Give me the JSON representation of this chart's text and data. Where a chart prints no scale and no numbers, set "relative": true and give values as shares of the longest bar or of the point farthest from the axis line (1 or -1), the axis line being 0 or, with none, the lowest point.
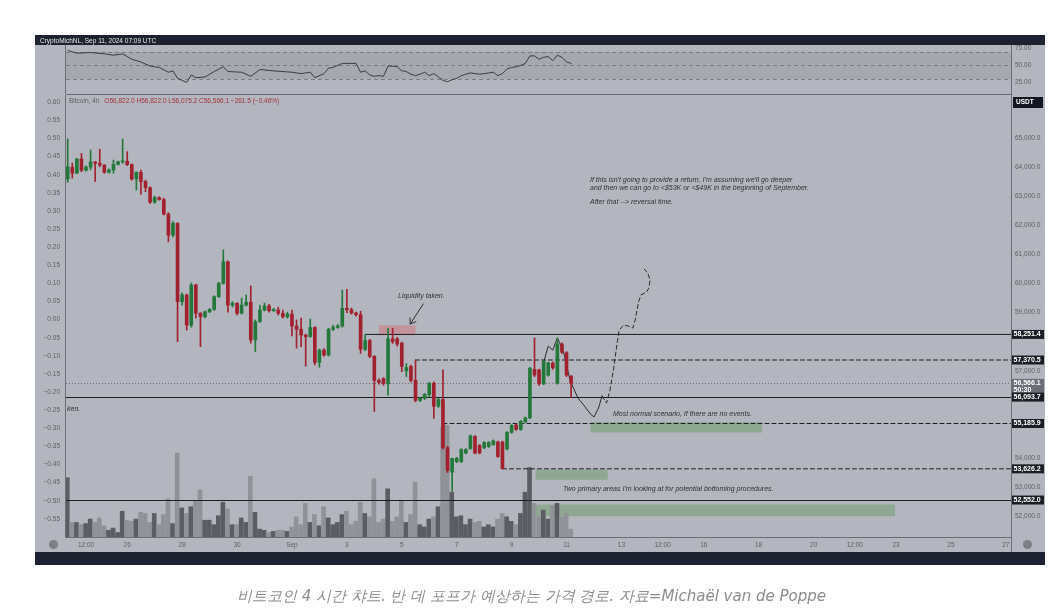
{
  "chart_data": [
    {
      "type": "line",
      "title": "CryptoMichNL, Sep 11, 2024 07:09 UTC",
      "x": [
        "2024-08-23T20:00",
        "2024-08-24T00:00",
        "2024-08-24T04:00",
        "2024-08-24T16:00",
        "2024-08-25T04:00",
        "2024-08-25T12:00",
        "2024-08-25T20:00",
        "2024-08-26T04:00",
        "2024-08-26T12:00",
        "2024-08-26T20:00",
        "2024-08-27T04:00",
        "2024-08-27T12:00",
        "2024-08-27T16:00",
        "2024-08-27T20:00",
        "2024-08-28T00:00",
        "2024-08-28T04:00",
        "2024-08-28T08:00",
        "2024-08-28T12:00",
        "2024-08-28T20:00",
        "2024-08-29T04:00",
        "2024-08-29T12:00",
        "2024-08-29T16:00",
        "2024-08-30T04:00",
        "2024-08-30T12:00",
        "2024-08-30T20:00",
        "2024-08-31T08:00",
        "2024-09-01T00:00",
        "2024-09-01T08:00",
        "2024-09-01T16:00",
        "2024-09-01T20:00",
        "2024-09-02T04:00",
        "2024-09-02T08:00",
        "2024-09-02T12:00",
        "2024-09-02T20:00",
        "2024-09-03T00:00",
        "2024-09-03T08:00",
        "2024-09-03T12:00",
        "2024-09-03T16:00",
        "2024-09-03T20:00",
        "2024-09-04T00:00",
        "2024-09-04T04:00",
        "2024-09-04T08:00",
        "2024-09-04T12:00",
        "2024-09-04T16:00",
        "2024-09-04T20:00",
        "2024-09-05T00:00",
        "2024-09-05T04:00",
        "2024-09-05T08:00",
        "2024-09-05T12:00",
        "2024-09-05T16:00",
        "2024-09-05T20:00",
        "2024-09-06T00:00",
        "2024-09-06T04:00",
        "2024-09-06T08:00",
        "2024-09-06T12:00",
        "2024-09-06T16:00",
        "2024-09-06T20:00",
        "2024-09-07T00:00",
        "2024-09-07T04:00",
        "2024-09-07T08:00",
        "2024-09-07T12:00",
        "2024-09-07T16:00",
        "2024-09-07T20:00",
        "2024-09-08T00:00",
        "2024-09-08T04:00",
        "2024-09-08T08:00",
        "2024-09-08T12:00",
        "2024-09-08T16:00",
        "2024-09-08T20:00",
        "2024-09-09T00:00",
        "2024-09-09T04:00",
        "2024-09-09T08:00",
        "2024-09-09T12:00",
        "2024-09-09T16:00",
        "2024-09-09T20:00",
        "2024-09-10T00:00",
        "2024-09-10T04:00",
        "2024-09-10T08:00",
        "2024-09-10T12:00",
        "2024-09-10T16:00",
        "2024-09-10T20:00",
        "2024-09-11T00:00",
        "2024-09-11T04:00"
      ],
      "values": [
        72,
        70,
        68,
        69,
        67,
        65,
        67,
        59,
        55,
        49,
        47,
        40,
        42,
        31,
        28,
        25,
        36,
        32,
        33,
        41,
        48,
        41,
        40,
        34,
        44,
        42,
        40,
        38,
        40,
        32,
        38,
        46,
        47,
        53,
        53,
        53,
        40,
        42,
        36,
        34,
        35,
        34,
        49,
        49,
        48,
        42,
        41,
        37,
        35,
        37,
        40,
        35,
        38,
        33,
        28,
        26,
        29,
        31,
        35,
        37,
        39,
        38,
        37,
        38,
        39,
        40,
        35,
        38,
        45,
        47,
        48,
        50,
        53,
        64,
        64,
        59,
        62,
        63,
        57,
        65,
        62,
        55,
        53
      ],
      "color": "#3a3d44",
      "xlim": [
        "2024-08-23T18:30",
        "2024-09-27T04:30"
      ],
      "ylim": [
        8,
        80
      ],
      "yticks": [
        {
          "value": 25,
          "label": "25.00"
        },
        {
          "value": 50,
          "label": "50.00"
        },
        {
          "value": 75,
          "label": "75.00"
        }
      ],
      "tick_labels": "y",
      "bands": [
        {
          "axis": "y",
          "from": 30,
          "to": 70,
          "color": "#a5a8af"
        }
      ],
      "ref_lines": [
        {
          "axis": "y",
          "value": 70,
          "color": "#7b7e86",
          "line_style": "dashed"
        },
        {
          "axis": "y",
          "value": 50,
          "color": "#7b7e86",
          "line_style": "dashed"
        },
        {
          "axis": "y",
          "value": 30,
          "color": "#7b7e86",
          "line_style": "dashed"
        }
      ]
    },
    {
      "type": "candlestick",
      "title": "Bitcoin, 4h",
      "ylabel": "USDT",
      "x": [
        "2024-08-23T20:00",
        "2024-08-24T00:00",
        "2024-08-24T04:00",
        "2024-08-24T08:00",
        "2024-08-24T12:00",
        "2024-08-24T16:00",
        "2024-08-24T20:00",
        "2024-08-25T00:00",
        "2024-08-25T04:00",
        "2024-08-25T08:00",
        "2024-08-25T12:00",
        "2024-08-25T16:00",
        "2024-08-25T20:00",
        "2024-08-26T00:00",
        "2024-08-26T04:00",
        "2024-08-26T08:00",
        "2024-08-26T12:00",
        "2024-08-26T16:00",
        "2024-08-26T20:00",
        "2024-08-27T00:00",
        "2024-08-27T04:00",
        "2024-08-27T08:00",
        "2024-08-27T12:00",
        "2024-08-27T16:00",
        "2024-08-27T20:00",
        "2024-08-28T00:00",
        "2024-08-28T04:00",
        "2024-08-28T08:00",
        "2024-08-28T12:00",
        "2024-08-28T16:00",
        "2024-08-28T20:00",
        "2024-08-29T00:00",
        "2024-08-29T04:00",
        "2024-08-29T08:00",
        "2024-08-29T12:00",
        "2024-08-29T16:00",
        "2024-08-29T20:00",
        "2024-08-30T00:00",
        "2024-08-30T04:00",
        "2024-08-30T08:00",
        "2024-08-30T12:00",
        "2024-08-30T16:00",
        "2024-08-30T20:00",
        "2024-08-31T00:00",
        "2024-08-31T04:00",
        "2024-08-31T08:00",
        "2024-08-31T12:00",
        "2024-08-31T16:00",
        "2024-08-31T20:00",
        "2024-09-01T00:00",
        "2024-09-01T04:00",
        "2024-09-01T08:00",
        "2024-09-01T12:00",
        "2024-09-01T16:00",
        "2024-09-01T20:00",
        "2024-09-02T00:00",
        "2024-09-02T04:00",
        "2024-09-02T08:00",
        "2024-09-02T12:00",
        "2024-09-02T16:00",
        "2024-09-02T20:00",
        "2024-09-03T00:00",
        "2024-09-03T04:00",
        "2024-09-03T08:00",
        "2024-09-03T12:00",
        "2024-09-03T16:00",
        "2024-09-03T20:00",
        "2024-09-04T00:00",
        "2024-09-04T04:00",
        "2024-09-04T08:00",
        "2024-09-04T12:00",
        "2024-09-04T16:00",
        "2024-09-04T20:00",
        "2024-09-05T00:00",
        "2024-09-05T04:00",
        "2024-09-05T08:00",
        "2024-09-05T12:00",
        "2024-09-05T16:00",
        "2024-09-05T20:00",
        "2024-09-06T00:00",
        "2024-09-06T04:00",
        "2024-09-06T08:00",
        "2024-09-06T12:00",
        "2024-09-06T16:00",
        "2024-09-06T20:00",
        "2024-09-07T00:00",
        "2024-09-07T04:00",
        "2024-09-07T08:00",
        "2024-09-07T12:00",
        "2024-09-07T16:00",
        "2024-09-07T20:00",
        "2024-09-08T00:00",
        "2024-09-08T04:00",
        "2024-09-08T08:00",
        "2024-09-08T12:00",
        "2024-09-08T16:00",
        "2024-09-08T20:00",
        "2024-09-09T00:00",
        "2024-09-09T04:00",
        "2024-09-09T08:00",
        "2024-09-09T12:00",
        "2024-09-09T16:00",
        "2024-09-09T20:00",
        "2024-09-10T00:00",
        "2024-09-10T04:00",
        "2024-09-10T08:00",
        "2024-09-10T12:00",
        "2024-09-10T16:00",
        "2024-09-10T20:00",
        "2024-09-11T00:00",
        "2024-09-11T04:00"
      ],
      "series": [
        {
          "type": "line",
          "x": [
            "2024-09-03T16:00",
            "2024-09-27T04:30"
          ],
          "values": [
            58251.4,
            58251.4
          ],
          "color": "#1b1e25",
          "line_style": "solid",
          "value_labels": [
            null,
            "58,251.4"
          ]
        },
        {
          "type": "line",
          "x": [
            "2024-09-05T12:00",
            "2024-09-27T04:30"
          ],
          "values": [
            57370.5,
            57370.5
          ],
          "color": "#1b1e25",
          "line_style": "dashed",
          "value_labels": [
            null,
            "57,370.5"
          ]
        },
        {
          "type": "line",
          "x": [
            "2024-09-06T12:00",
            "2024-09-27T04:30"
          ],
          "values": [
            55185.9,
            55185.9
          ],
          "color": "#1b1e25",
          "line_style": "dashed",
          "value_labels": [
            null,
            "55,185.9"
          ]
        },
        {
          "type": "line",
          "x": [
            "2024-09-08T16:00",
            "2024-09-27T04:30"
          ],
          "values": [
            53626.2,
            53626.2
          ],
          "color": "#1b1e25",
          "line_style": "dashed",
          "value_labels": [
            null,
            "53,626.2"
          ]
        },
        {
          "type": "line",
          "x": [
            "2024-09-10T04:00",
            "2024-09-10T08:00",
            "2024-09-10T12:00",
            "2024-09-10T16:00",
            "2024-09-10T21:00",
            "2024-09-11T03:00",
            "2024-09-11T10:00",
            "2024-09-11T15:00",
            "2024-09-11T21:00",
            "2024-09-12T00:00",
            "2024-09-12T04:00",
            "2024-09-12T07:00"
          ],
          "values": [
            57300,
            57850,
            57710,
            58130,
            57710,
            56680,
            56060,
            55820,
            55510,
            55410,
            55720,
            56130
          ],
          "color": "#2a2d33",
          "line_style": "solid"
        },
        {
          "type": "line",
          "x": [
            "2024-09-12T07:00",
            "2024-09-12T11:00",
            "2024-09-12T14:00",
            "2024-09-12T17:00",
            "2024-09-12T20:00",
            "2024-09-12T22:00",
            "2024-09-13T02:00",
            "2024-09-13T06:00",
            "2024-09-13T10:00",
            "2024-09-13T12:00",
            "2024-09-13T15:00",
            "2024-09-13T17:00",
            "2024-09-13T22:00",
            "2024-09-14T00:00",
            "2024-09-14T01:00",
            "2024-09-13T23:00",
            "2024-09-13T20:00"
          ],
          "values": [
            56130,
            55890,
            56340,
            57020,
            57890,
            58400,
            58570,
            58540,
            58470,
            58750,
            59370,
            59610,
            59710,
            59850,
            60120,
            60360,
            60500
          ],
          "color": "#2a2d33",
          "line_style": "dashed"
        },
        {
          "ohlc": [
            [
              63600,
              64980,
              63490,
              64020
            ],
            [
              64000,
              64150,
              63630,
              63800
            ],
            [
              63800,
              64310,
              63790,
              64290
            ],
            [
              64290,
              64480,
              63850,
              63900
            ],
            [
              63900,
              64050,
              63870,
              64010
            ],
            [
              64010,
              64600,
              63910,
              64190
            ],
            [
              64190,
              64200,
              63510,
              64140
            ],
            [
              64140,
              64620,
              64020,
              64080
            ],
            [
              64080,
              64090,
              63800,
              63830
            ],
            [
              63830,
              63950,
              63800,
              63910
            ],
            [
              63910,
              64250,
              63800,
              64100
            ],
            [
              64100,
              64220,
              64080,
              64190
            ],
            [
              64190,
              64980,
              64140,
              64210
            ],
            [
              64210,
              64540,
              64060,
              64100
            ],
            [
              64100,
              64120,
              63560,
              63600
            ],
            [
              63600,
              63850,
              63220,
              63830
            ],
            [
              63830,
              63910,
              63070,
              63510
            ],
            [
              63510,
              63560,
              63160,
              63300
            ],
            [
              63300,
              63330,
              62760,
              62800
            ],
            [
              62800,
              63010,
              62760,
              62960
            ],
            [
              62960,
              62990,
              62870,
              62890
            ],
            [
              62890,
              62940,
              62360,
              62390
            ],
            [
              62390,
              62440,
              61440,
              61670
            ],
            [
              61670,
              62130,
              61610,
              62070
            ],
            [
              62070,
              62100,
              58000,
              59380
            ],
            [
              59380,
              59680,
              59260,
              59610
            ],
            [
              59610,
              59640,
              58400,
              58570
            ],
            [
              58570,
              60020,
              58500,
              59950
            ],
            [
              59950,
              59980,
              58810,
              58980
            ],
            [
              58980,
              59000,
              57830,
              58860
            ],
            [
              58860,
              59060,
              58820,
              59030
            ],
            [
              59030,
              59140,
              59000,
              59110
            ],
            [
              59110,
              59580,
              59080,
              59550
            ],
            [
              59550,
              60050,
              59520,
              60010
            ],
            [
              60010,
              61160,
              59980,
              60750
            ],
            [
              60750,
              60780,
              59020,
              59260
            ],
            [
              59260,
              59380,
              59200,
              59320
            ],
            [
              59320,
              59350,
              58920,
              58980
            ],
            [
              58980,
              59500,
              58950,
              59260
            ],
            [
              59260,
              59610,
              59230,
              59360
            ],
            [
              59360,
              59920,
              57950,
              58060
            ],
            [
              58060,
              58750,
              57660,
              58690
            ],
            [
              58690,
              59260,
              58660,
              59090
            ],
            [
              59090,
              59330,
              59060,
              59230
            ],
            [
              59230,
              59290,
              59020,
              59070
            ],
            [
              59070,
              59150,
              59040,
              59090
            ],
            [
              59090,
              59190,
              58920,
              58980
            ],
            [
              58980,
              59090,
              58810,
              58860
            ],
            [
              58860,
              59020,
              58810,
              58950
            ],
            [
              58950,
              59090,
              58200,
              58540
            ],
            [
              58540,
              58750,
              57780,
              58430
            ],
            [
              58430,
              58810,
              57830,
              58230
            ],
            [
              58230,
              58260,
              57160,
              58170
            ],
            [
              58170,
              58780,
              58160,
              58490
            ],
            [
              58490,
              58520,
              57200,
              57290
            ],
            [
              57290,
              57750,
              57120,
              57710
            ],
            [
              57710,
              57760,
              57500,
              57540
            ],
            [
              57540,
              58460,
              57510,
              58430
            ],
            [
              58430,
              58560,
              58380,
              58490
            ],
            [
              58490,
              58600,
              58460,
              58540
            ],
            [
              58540,
              59780,
              58500,
              59150
            ],
            [
              59150,
              59800,
              59000,
              59100
            ],
            [
              59100,
              59160,
              58950,
              58990
            ],
            [
              58990,
              59020,
              58880,
              58930
            ],
            [
              58930,
              59050,
              57600,
              57740
            ],
            [
              57740,
              58250,
              57690,
              58040
            ],
            [
              58040,
              58080,
              57450,
              57500
            ],
            [
              57500,
              57520,
              55600,
              56670
            ],
            [
              56670,
              56720,
              56540,
              56600
            ],
            [
              56730,
              56760,
              56500,
              56560
            ],
            [
              56550,
              58460,
              56160,
              58100
            ],
            [
              58100,
              58460,
              57940,
              58000
            ],
            [
              58100,
              58150,
              57850,
              57920
            ],
            [
              57950,
              57990,
              56970,
              57150
            ],
            [
              57000,
              57250,
              56800,
              57110
            ],
            [
              57150,
              57200,
              56620,
              56670
            ],
            [
              56670,
              57370,
              55930,
              55980
            ],
            [
              55980,
              56080,
              55940,
              56050
            ],
            [
              56050,
              56220,
              56010,
              56190
            ],
            [
              56170,
              56600,
              56100,
              56570
            ],
            [
              56570,
              56620,
              55360,
              55780
            ],
            [
              55780,
              56050,
              55740,
              56010
            ],
            [
              56010,
              57030,
              54300,
              54350
            ],
            [
              54350,
              54400,
              53500,
              53570
            ],
            [
              53510,
              53990,
              52860,
              53990
            ],
            [
              53870,
              54020,
              53840,
              53990
            ],
            [
              53870,
              54320,
              53840,
              54290
            ],
            [
              54170,
              54320,
              54140,
              54290
            ],
            [
              54320,
              54790,
              54300,
              54760
            ],
            [
              54740,
              54770,
              54140,
              54170
            ],
            [
              54430,
              54460,
              54140,
              54170
            ],
            [
              54350,
              54560,
              54320,
              54530
            ],
            [
              54390,
              54560,
              54360,
              54530
            ],
            [
              54460,
              54620,
              54430,
              54590
            ],
            [
              54550,
              54580,
              54020,
              54050
            ],
            [
              54550,
              54580,
              53626,
              53630
            ],
            [
              54310,
              54910,
              54280,
              54880
            ],
            [
              54880,
              55150,
              54850,
              55120
            ],
            [
              55140,
              55170,
              54950,
              54980
            ],
            [
              54980,
              55290,
              54950,
              55260
            ],
            [
              55240,
              55410,
              55210,
              55380
            ],
            [
              55380,
              57120,
              55350,
              57090
            ],
            [
              57050,
              58130,
              56800,
              56850
            ],
            [
              57030,
              57060,
              56500,
              56550
            ],
            [
              56550,
              57350,
              56520,
              57320
            ],
            [
              56850,
              57300,
              56820,
              57270
            ],
            [
              57270,
              57300,
              57050,
              57100
            ],
            [
              56580,
              58130,
              56540,
              57920
            ],
            [
              57920,
              57960,
              57600,
              57640
            ],
            [
              57620,
              57660,
              56800,
              56850
            ],
            [
              56822.0,
              56822.0,
              56075.2,
              56566.1
            ]
          ],
          "colors": [
            "#24783a",
            "#a1222e",
            "#24783a",
            "#a1222e",
            "#24783a",
            "#24783a",
            "#a1222e",
            "#a1222e",
            "#a1222e",
            "#24783a",
            "#24783a",
            "#24783a",
            "#24783a",
            "#a1222e",
            "#a1222e",
            "#24783a",
            "#a1222e",
            "#a1222e",
            "#a1222e",
            "#24783a",
            "#a1222e",
            "#a1222e",
            "#a1222e",
            "#24783a",
            "#a1222e",
            "#24783a",
            "#a1222e",
            "#24783a",
            "#a1222e",
            "#a1222e",
            "#24783a",
            "#24783a",
            "#24783a",
            "#24783a",
            "#24783a",
            "#a1222e",
            "#24783a",
            "#a1222e",
            "#24783a",
            "#24783a",
            "#a1222e",
            "#24783a",
            "#24783a",
            "#24783a",
            "#a1222e",
            "#24783a",
            "#a1222e",
            "#a1222e",
            "#24783a",
            "#a1222e",
            "#a1222e",
            "#a1222e",
            "#a1222e",
            "#24783a",
            "#a1222e",
            "#24783a",
            "#a1222e",
            "#24783a",
            "#24783a",
            "#24783a",
            "#24783a",
            "#a1222e",
            "#a1222e",
            "#a1222e",
            "#a1222e",
            "#24783a",
            "#a1222e",
            "#a1222e",
            "#a1222e",
            "#a1222e",
            "#24783a",
            "#a1222e",
            "#a1222e",
            "#a1222e",
            "#24783a",
            "#a1222e",
            "#a1222e",
            "#24783a",
            "#24783a",
            "#24783a",
            "#a1222e",
            "#24783a",
            "#a1222e",
            "#a1222e",
            "#24783a",
            "#24783a",
            "#24783a",
            "#24783a",
            "#24783a",
            "#a1222e",
            "#a1222e",
            "#24783a",
            "#24783a",
            "#24783a",
            "#a1222e",
            "#a1222e",
            "#24783a",
            "#24783a",
            "#a1222e",
            "#24783a",
            "#24783a",
            "#24783a",
            "#a1222e",
            "#a1222e",
            "#24783a",
            "#24783a",
            "#a1222e",
            "#24783a",
            "#a1222e",
            "#a1222e",
            "#a1222e"
          ]
        }
      ],
      "xlim": [
        "2024-08-23T18:30",
        "2024-09-27T04:30"
      ],
      "xticks": [
        {
          "value": "2024-08-24T12:00",
          "label": "12:00"
        },
        {
          "value": "2024-08-26",
          "label": "26"
        },
        {
          "value": "2024-08-28",
          "label": "28"
        },
        {
          "value": "2024-08-30",
          "label": "30"
        },
        {
          "value": "2024-09-01",
          "label": "Sep"
        },
        {
          "value": "2024-09-03",
          "label": "3"
        },
        {
          "value": "2024-09-05",
          "label": "5"
        },
        {
          "value": "2024-09-07",
          "label": "7"
        },
        {
          "value": "2024-09-09",
          "label": "9"
        },
        {
          "value": "2024-09-11",
          "label": "11"
        },
        {
          "value": "2024-09-13",
          "label": "13"
        },
        {
          "value": "2024-09-14T12:00",
          "label": "12:00"
        },
        {
          "value": "2024-09-16",
          "label": "16"
        },
        {
          "value": "2024-09-18",
          "label": "18"
        },
        {
          "value": "2024-09-20",
          "label": "20"
        },
        {
          "value": "2024-09-21T12:00",
          "label": "12:00"
        },
        {
          "value": "2024-09-23",
          "label": "23"
        },
        {
          "value": "2024-09-25",
          "label": "25"
        },
        {
          "value": "2024-09-27",
          "label": "27"
        }
      ],
      "ylim": [
        51280,
        66490
      ],
      "yticks": [
        {
          "value": 52000,
          "label": "52,000.0"
        },
        {
          "value": 53000,
          "label": "53,000.0"
        },
        {
          "value": 54000,
          "label": "54,000.0"
        },
        {
          "value": 57000,
          "label": "57,000.0"
        },
        {
          "value": 59000,
          "label": "59,000.0"
        },
        {
          "value": 60000,
          "label": "60,000.0"
        },
        {
          "value": 61000,
          "label": "61,000.0"
        },
        {
          "value": 62000,
          "label": "62,000.0"
        },
        {
          "value": 63000,
          "label": "63,000.0"
        },
        {
          "value": 64000,
          "label": "64,000.0"
        },
        {
          "value": 65000,
          "label": "65,000.0"
        }
      ],
      "y2lim": [
        -0.6,
        0.62
      ],
      "y2ticks": [
        {
          "value": 0.6,
          "label": "0.60"
        },
        {
          "value": 0.55,
          "label": "0.55"
        },
        {
          "value": 0.5,
          "label": "0.50"
        },
        {
          "value": 0.45,
          "label": "0.45"
        },
        {
          "value": 0.4,
          "label": "0.40"
        },
        {
          "value": 0.35,
          "label": "0.35"
        },
        {
          "value": 0.3,
          "label": "0.30"
        },
        {
          "value": 0.25,
          "label": "0.25"
        },
        {
          "value": 0.2,
          "label": "0.20"
        },
        {
          "value": 0.15,
          "label": "0.15"
        },
        {
          "value": 0.1,
          "label": "0.10"
        },
        {
          "value": 0.05,
          "label": "0.05"
        },
        {
          "value": 0,
          "label": "0.00"
        },
        {
          "value": -0.05,
          "label": "−0.05"
        },
        {
          "value": -0.1,
          "label": "−0.10"
        },
        {
          "value": -0.15,
          "label": "−0.15"
        },
        {
          "value": -0.2,
          "label": "−0.20"
        },
        {
          "value": -0.25,
          "label": "−0.25"
        },
        {
          "value": -0.3,
          "label": "−0.30"
        },
        {
          "value": -0.35,
          "label": "−0.35"
        },
        {
          "value": -0.4,
          "label": "−0.40"
        },
        {
          "value": -0.45,
          "label": "−0.45"
        },
        {
          "value": -0.5,
          "label": "−0.50"
        },
        {
          "value": -0.55,
          "label": "−0.55"
        }
      ],
      "ref_lines": [
        {
          "axis": "y",
          "value": 56566.1,
          "label": "56,566.1\n50:30",
          "color": "#6a6d76",
          "line_style": "dotted"
        },
        {
          "axis": "y",
          "value": 56093.7,
          "label": "56,093.7",
          "color": "#1b1e25",
          "line_style": "solid"
        },
        {
          "axis": "y",
          "value": 52552.0,
          "label": "52,552.0",
          "color": "#1b1e25",
          "line_style": "solid"
        }
      ],
      "annotations": [
        "O56,822.0 H56,822.0 L56,075.2 C56,566.1 −261.5 (−0.46%)",
        "Liquidity taken.",
        "If this isn't going to provide a return, I'm assuming we'll go deeper\nand then we can go to <$53K or <$49K in the beginning of September.",
        "After that --> reversal time.",
        "Most normal scenario, If there are no events.",
        "Two primary areas I'm looking at for potential bottoming procedures.",
        "ken.",
        "비트코인 4 시간 챠트. 반 데 포프가 예상하는 가격 경로. 자료=Michaël van de Poppe"
      ]
    },
    {
      "type": "bar",
      "relative": true,
      "categories": [
        null,
        null,
        null,
        null,
        null,
        null,
        null,
        null,
        null,
        null,
        null,
        null,
        null,
        null,
        null,
        null,
        null,
        null,
        null,
        null,
        null,
        null,
        null,
        null,
        null,
        null,
        null,
        null,
        null,
        null,
        null,
        null,
        null,
        null,
        null,
        null,
        null,
        null,
        null,
        null,
        null,
        null,
        null,
        null,
        null,
        null,
        null,
        null,
        null,
        null,
        null,
        null,
        null,
        null,
        null,
        null,
        null,
        null,
        null,
        null,
        null,
        null,
        null,
        null,
        null,
        null,
        null,
        null,
        null,
        null,
        null,
        null,
        null,
        null,
        null,
        null,
        null,
        null,
        null,
        null,
        null,
        null,
        null,
        null,
        null,
        null,
        null,
        null,
        null,
        null,
        null,
        null,
        null,
        null,
        null,
        null,
        null,
        null,
        null,
        null,
        null,
        null,
        null,
        null,
        null,
        null,
        null,
        null,
        null,
        null,
        null
      ],
      "values": [
        0.53,
        0.13,
        0.13,
        0.11,
        0.12,
        0.16,
        0.13,
        0.17,
        0.1,
        0.06,
        0.08,
        0.04,
        0.23,
        0.15,
        0.14,
        0.16,
        0.22,
        0.21,
        0.13,
        0.21,
        0.11,
        0.2,
        0.34,
        0.12,
        0.75,
        0.26,
        0.21,
        0.27,
        0.32,
        0.42,
        0.15,
        0.15,
        0.11,
        0.19,
        0.31,
        0.25,
        0.11,
        0.11,
        0.17,
        0.13,
        0.54,
        0.22,
        0.07,
        0.06,
        0.04,
        0.05,
        0.06,
        0.06,
        0.05,
        0.09,
        0.18,
        0.11,
        0.3,
        0.13,
        0.2,
        0.1,
        0.27,
        0.17,
        0.11,
        0.13,
        0.2,
        0.23,
        0.11,
        0.14,
        0.31,
        0.21,
        0.18,
        0.52,
        0.13,
        0.16,
        0.43,
        0.14,
        0.18,
        0.33,
        0.13,
        0.2,
        0.49,
        0.11,
        0.09,
        0.16,
        0.18,
        0.27,
        0.98,
        1,
        0.4,
        0.18,
        0.19,
        0.11,
        0.16,
        0.13,
        0.14,
        0.09,
        0.11,
        0.09,
        0.16,
        0.21,
        0.18,
        0.14,
        0.11,
        0.21,
        0.4,
        0.62,
        0.3,
        0.18,
        0.24,
        0.16,
        0.28,
        0.3,
        0.18,
        0.21,
        0.07
      ],
      "colors": [
        "#5b5d63",
        "#909298",
        "#5b5d63",
        "#909298",
        "#5b5d63",
        "#5b5d63",
        "#909298",
        "#909298",
        "#909298",
        "#5b5d63",
        "#5b5d63",
        "#5b5d63",
        "#5b5d63",
        "#909298",
        "#909298",
        "#5b5d63",
        "#909298",
        "#909298",
        "#909298",
        "#5b5d63",
        "#909298",
        "#909298",
        "#909298",
        "#5b5d63",
        "#909298",
        "#5b5d63",
        "#909298",
        "#5b5d63",
        "#909298",
        "#909298",
        "#5b5d63",
        "#5b5d63",
        "#5b5d63",
        "#5b5d63",
        "#5b5d63",
        "#909298",
        "#5b5d63",
        "#909298",
        "#5b5d63",
        "#5b5d63",
        "#909298",
        "#5b5d63",
        "#5b5d63",
        "#5b5d63",
        "#909298",
        "#5b5d63",
        "#909298",
        "#909298",
        "#5b5d63",
        "#909298",
        "#909298",
        "#909298",
        "#909298",
        "#5b5d63",
        "#909298",
        "#5b5d63",
        "#909298",
        "#5b5d63",
        "#5b5d63",
        "#5b5d63",
        "#5b5d63",
        "#909298",
        "#909298",
        "#909298",
        "#909298",
        "#5b5d63",
        "#909298",
        "#909298",
        "#909298",
        "#909298",
        "#5b5d63",
        "#909298",
        "#909298",
        "#909298",
        "#5b5d63",
        "#909298",
        "#909298",
        "#5b5d63",
        "#5b5d63",
        "#5b5d63",
        "#909298",
        "#5b5d63",
        "#909298",
        "#909298",
        "#5b5d63",
        "#5b5d63",
        "#5b5d63",
        "#5b5d63",
        "#5b5d63",
        "#909298",
        "#909298",
        "#5b5d63",
        "#5b5d63",
        "#5b5d63",
        "#909298",
        "#909298",
        "#5b5d63",
        "#5b5d63",
        "#909298",
        "#5b5d63",
        "#5b5d63",
        "#5b5d63",
        "#909298",
        "#909298",
        "#5b5d63",
        "#5b5d63",
        "#909298",
        "#5b5d63",
        "#909298",
        "#909298",
        "#909298"
      ]
    },
    {
      "type": "area",
      "tick_labels": false,
      "xlim": [
        "2024-08-23T18:30",
        "2024-09-27T04:30"
      ],
      "ylim": [
        51280,
        66490
      ],
      "series": [
        {
          "x": [
            "2024-09-04T04:00",
            "2024-09-05T12:00"
          ],
          "values": [
            null,
            null
          ],
          "lower": [
            58220,
            58220
          ],
          "upper": [
            58570,
            58570
          ],
          "color": "#c4949c"
        },
        {
          "x": [
            "2024-09-11T21:00",
            "2024-09-18T03:00"
          ],
          "values": [
            null,
            null
          ],
          "lower": [
            54880,
            54880
          ],
          "upper": [
            55240,
            55240
          ],
          "color": "#8fa891"
        },
        {
          "x": [
            "2024-09-09T21:00",
            "2024-09-12T12:00"
          ],
          "values": [
            null,
            null
          ],
          "lower": [
            53250,
            53250
          ],
          "upper": [
            53600,
            53600
          ],
          "color": "#8fa891"
        },
        {
          "x": [
            "2024-09-09T15:00",
            "2024-09-22T23:00"
          ],
          "values": [
            null,
            null
          ],
          "lower": [
            51990,
            51990
          ],
          "upper": [
            52400,
            52400
          ],
          "color": "#8fa891"
        }
      ]
    }
  ]
}
